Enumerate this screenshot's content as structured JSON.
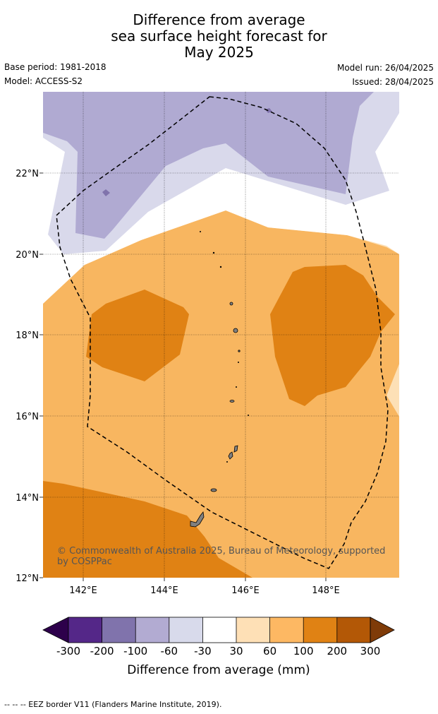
{
  "title": {
    "line1": "Difference from average",
    "line2": "sea surface height forecast for",
    "line3": "May 2025"
  },
  "meta": {
    "base_period": "Base period: 1981-2018",
    "model": "Model: ACCESS-S2",
    "model_run": "Model run: 26/04/2025",
    "issued": "Issued: 28/04/2025"
  },
  "map": {
    "lon_range": [
      141,
      149.8
    ],
    "lat_range": [
      12,
      24
    ],
    "lat_ticks": [
      "22°N",
      "20°N",
      "18°N",
      "16°N",
      "14°N",
      "12°N"
    ],
    "lon_ticks": [
      "142°E",
      "144°E",
      "146°E",
      "148°E"
    ],
    "copyright_line1": "© Commonwealth of Australia 2025, Bureau of Meteorology, supported",
    "copyright_line2": "by COSPPac",
    "colors": {
      "neg100": "#b0aad2",
      "neg60": "#d9d9eb",
      "neg30": "#ffffff",
      "pos30": "#fde0b6",
      "pos60": "#f8b660",
      "pos100": "#e08214",
      "land": "#808080"
    }
  },
  "colorbar": {
    "labels": [
      "-300",
      "-200",
      "-100",
      "-60",
      "-30",
      "30",
      "60",
      "100",
      "200",
      "300"
    ],
    "colors": [
      "#2d004b",
      "#542788",
      "#8073ac",
      "#b2abd2",
      "#d8daeb",
      "#ffffff",
      "#fee0b6",
      "#fdb863",
      "#e08214",
      "#b35806",
      "#7f3b08"
    ],
    "title": "Difference from average (mm)"
  },
  "footer": {
    "legend": "--  --  -- EEZ border V11 (Flanders Marine Institute, 2019)."
  }
}
